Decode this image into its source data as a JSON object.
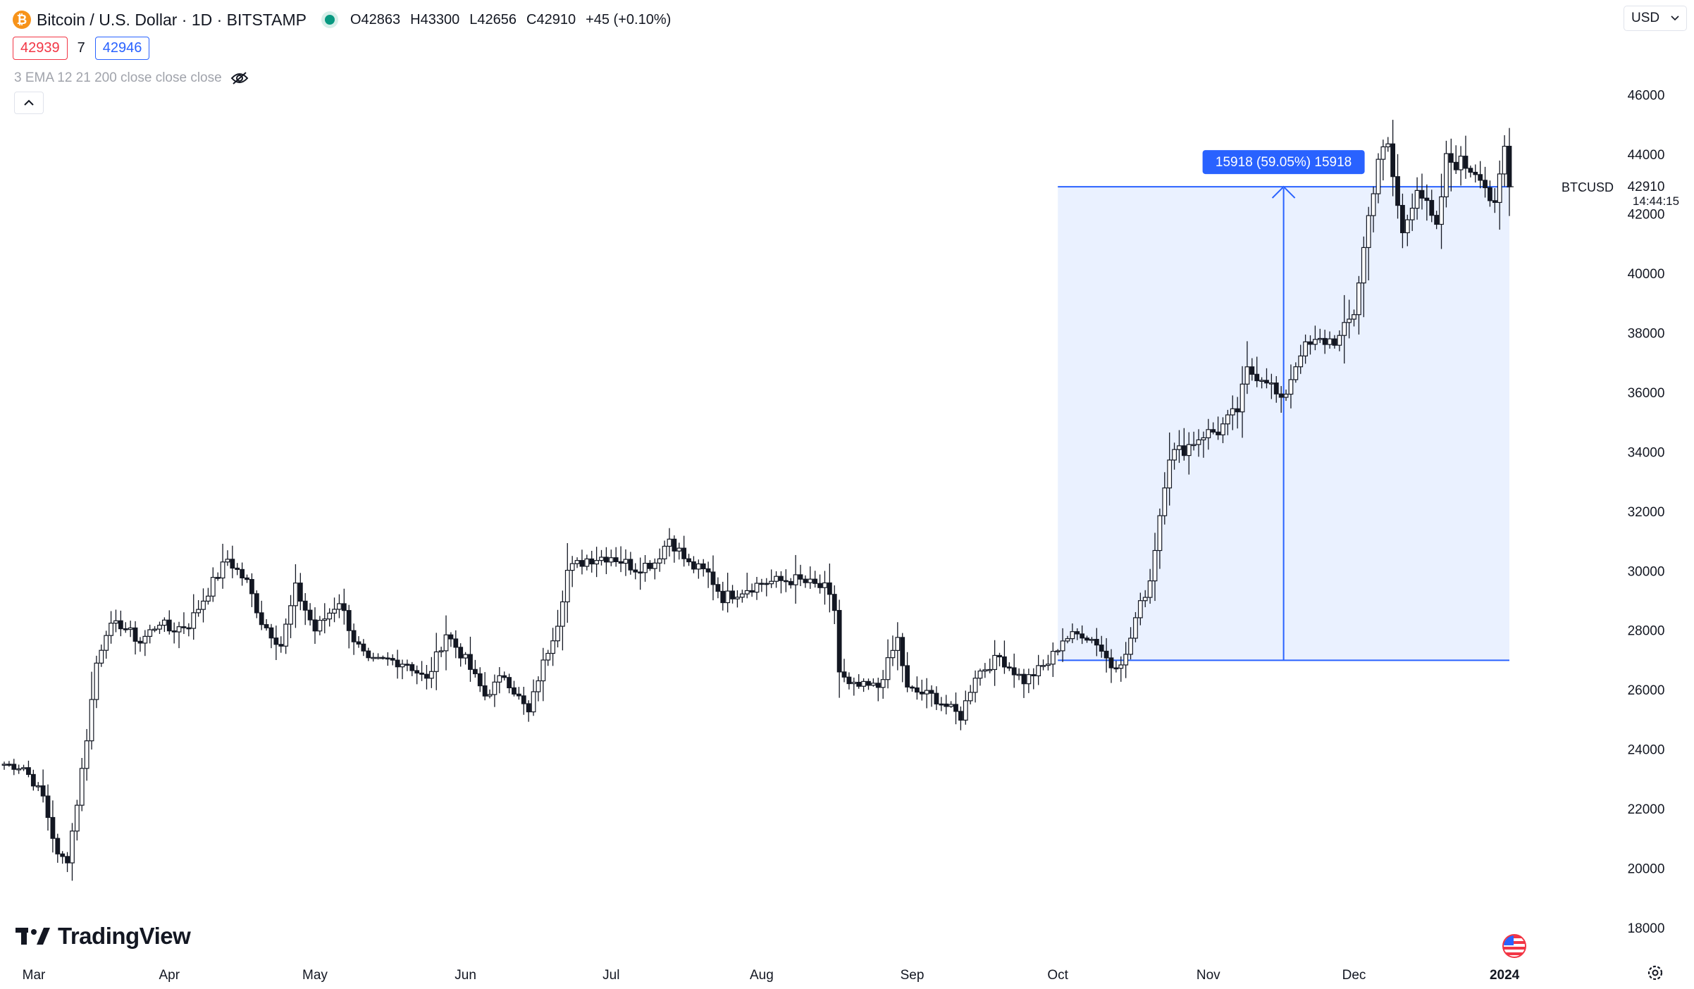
{
  "header": {
    "title": "Bitcoin / U.S. Dollar · 1D · BITSTAMP",
    "coin_symbol": "₿",
    "ohlc": {
      "open_label": "O",
      "open": "42863",
      "high_label": "H",
      "high": "43300",
      "low_label": "L",
      "low": "42656",
      "close_label": "C",
      "close": "42910",
      "change": "+45 (+0.10%)"
    }
  },
  "trade": {
    "sell": "42939",
    "spread": "7",
    "buy": "42946"
  },
  "indicator": {
    "label": "3 EMA  12  21  200  close  close  close",
    "visibility_icon": "eye-off-icon"
  },
  "collapse_icon": "chevron-up-icon",
  "currency": {
    "label": "USD",
    "icon": "chevron-down-icon"
  },
  "brand": {
    "name": "TradingView",
    "icon": "tradingview-logo-icon"
  },
  "settings_icon": "gear-icon",
  "colors": {
    "up": "#131722",
    "down": "#131722",
    "measure": "#2962ff",
    "measure_fill": "#eaf1ff",
    "flag": "#f23645"
  },
  "chart_data": {
    "type": "candlestick",
    "symbol": "BTCUSD",
    "ylim": [
      17000,
      47000
    ],
    "y_ticks": [
      18000,
      20000,
      22000,
      24000,
      26000,
      28000,
      30000,
      32000,
      34000,
      36000,
      38000,
      40000,
      42000,
      44000,
      46000
    ],
    "x_ticks": [
      "Mar",
      "Apr",
      "May",
      "Jun",
      "Jul",
      "Aug",
      "Sep",
      "Oct",
      "Nov",
      "Dec",
      "2024"
    ],
    "x_tick_dates": [
      "2023-03-01",
      "2023-04-01",
      "2023-05-01",
      "2023-06-01",
      "2023-07-01",
      "2023-08-01",
      "2023-09-01",
      "2023-10-01",
      "2023-11-01",
      "2023-12-01",
      "2024-01-01"
    ],
    "x_range": [
      "2023-02-26",
      "2024-01-02"
    ],
    "last_price": {
      "symbol_label": "BTCUSD",
      "value": "42910",
      "countdown": "14:44:15"
    },
    "measurement": {
      "label": "15918 (59.05%) 15918",
      "from_date": "2023-10-01",
      "to_date": "2024-01-02",
      "from_price": 26990,
      "to_price": 42910
    },
    "close_anchors": [
      [
        "2023-02-26",
        23500
      ],
      [
        "2023-03-02",
        23400
      ],
      [
        "2023-03-06",
        22400
      ],
      [
        "2023-03-09",
        20400
      ],
      [
        "2023-03-11",
        20300
      ],
      [
        "2023-03-13",
        22200
      ],
      [
        "2023-03-15",
        24400
      ],
      [
        "2023-03-17",
        26900
      ],
      [
        "2023-03-19",
        28000
      ],
      [
        "2023-03-22",
        28200
      ],
      [
        "2023-03-26",
        27600
      ],
      [
        "2023-03-30",
        28300
      ],
      [
        "2023-04-01",
        28000
      ],
      [
        "2023-04-05",
        28200
      ],
      [
        "2023-04-10",
        29600
      ],
      [
        "2023-04-13",
        30400
      ],
      [
        "2023-04-17",
        29600
      ],
      [
        "2023-04-20",
        28300
      ],
      [
        "2023-04-24",
        27500
      ],
      [
        "2023-04-27",
        29400
      ],
      [
        "2023-05-01",
        28000
      ],
      [
        "2023-05-06",
        29000
      ],
      [
        "2023-05-09",
        27700
      ],
      [
        "2023-05-12",
        26900
      ],
      [
        "2023-05-16",
        27000
      ],
      [
        "2023-05-20",
        26900
      ],
      [
        "2023-05-24",
        26300
      ],
      [
        "2023-05-28",
        27900
      ],
      [
        "2023-06-01",
        27000
      ],
      [
        "2023-06-05",
        25800
      ],
      [
        "2023-06-09",
        26500
      ],
      [
        "2023-06-14",
        25200
      ],
      [
        "2023-06-16",
        26400
      ],
      [
        "2023-06-20",
        28300
      ],
      [
        "2023-06-22",
        30000
      ],
      [
        "2023-06-26",
        30400
      ],
      [
        "2023-07-01",
        30500
      ],
      [
        "2023-07-06",
        30100
      ],
      [
        "2023-07-10",
        30300
      ],
      [
        "2023-07-13",
        31100
      ],
      [
        "2023-07-17",
        30200
      ],
      [
        "2023-07-21",
        29900
      ],
      [
        "2023-07-24",
        29100
      ],
      [
        "2023-08-01",
        29600
      ],
      [
        "2023-08-08",
        29700
      ],
      [
        "2023-08-14",
        29400
      ],
      [
        "2023-08-16",
        28700
      ],
      [
        "2023-08-17",
        26600
      ],
      [
        "2023-08-19",
        26100
      ],
      [
        "2023-08-25",
        26100
      ],
      [
        "2023-08-29",
        27700
      ],
      [
        "2023-08-31",
        26000
      ],
      [
        "2023-09-05",
        25800
      ],
      [
        "2023-09-11",
        25100
      ],
      [
        "2023-09-14",
        26500
      ],
      [
        "2023-09-19",
        27100
      ],
      [
        "2023-09-24",
        26300
      ],
      [
        "2023-09-29",
        26900
      ],
      [
        "2023-10-02",
        27700
      ],
      [
        "2023-10-06",
        27900
      ],
      [
        "2023-10-09",
        27600
      ],
      [
        "2023-10-12",
        26800
      ],
      [
        "2023-10-15",
        27100
      ],
      [
        "2023-10-17",
        28400
      ],
      [
        "2023-10-20",
        29700
      ],
      [
        "2023-10-23",
        33000
      ],
      [
        "2023-10-24",
        33900
      ],
      [
        "2023-10-27",
        34100
      ],
      [
        "2023-10-31",
        34600
      ],
      [
        "2023-11-03",
        34700
      ],
      [
        "2023-11-07",
        35400
      ],
      [
        "2023-11-09",
        36700
      ],
      [
        "2023-11-13",
        36500
      ],
      [
        "2023-11-16",
        35600
      ],
      [
        "2023-11-20",
        37400
      ],
      [
        "2023-11-24",
        37700
      ],
      [
        "2023-11-28",
        37800
      ],
      [
        "2023-12-01",
        38700
      ],
      [
        "2023-12-04",
        41900
      ],
      [
        "2023-12-06",
        43900
      ],
      [
        "2023-12-08",
        44200
      ],
      [
        "2023-12-11",
        41300
      ],
      [
        "2023-12-14",
        43000
      ],
      [
        "2023-12-18",
        41400
      ],
      [
        "2023-12-20",
        43800
      ],
      [
        "2023-12-23",
        43700
      ],
      [
        "2023-12-27",
        43400
      ],
      [
        "2023-12-30",
        42100
      ],
      [
        "2024-01-01",
        44200
      ],
      [
        "2024-01-02",
        42910
      ]
    ]
  }
}
